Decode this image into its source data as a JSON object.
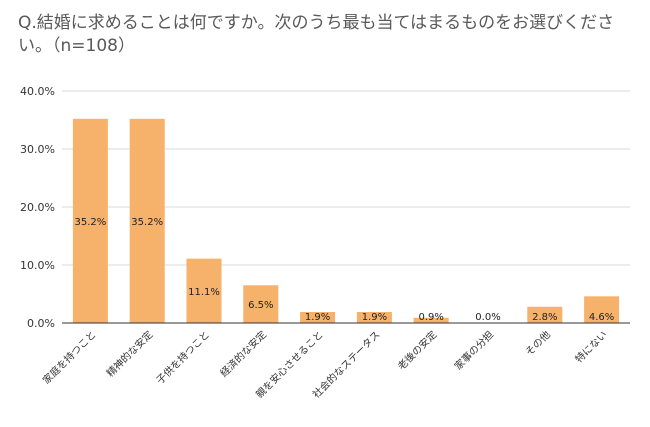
{
  "chart_data": {
    "type": "bar",
    "title": "Q.結婚に求めることは何ですか。次のうち最も当てはまるものをお選びください。（n=108）",
    "categories": [
      "家庭を持つこと",
      "精神的な安定",
      "子供を持つこと",
      "経済的な安定",
      "親を安心させること",
      "社会的なステータス",
      "老後の安定",
      "家事の分担",
      "その他",
      "特にない"
    ],
    "values": [
      35.2,
      35.2,
      11.1,
      6.5,
      1.9,
      1.9,
      0.9,
      0.0,
      2.8,
      4.6
    ],
    "data_labels": [
      "35.2%",
      "35.2%",
      "11.1%",
      "6.5%",
      "1.9%",
      "1.9%",
      "0.9%",
      "0.0%",
      "2.8%",
      "4.6%"
    ],
    "yticks": [
      0,
      10,
      20,
      30,
      40
    ],
    "ytick_labels": [
      "0.0%",
      "10.0%",
      "20.0%",
      "30.0%",
      "40.0%"
    ],
    "ylim": [
      0,
      40
    ],
    "grid": true,
    "legend": "none",
    "bar_color": "#F6B26B",
    "grid_color": "#D9D9D9",
    "axis_color": "#333333"
  }
}
